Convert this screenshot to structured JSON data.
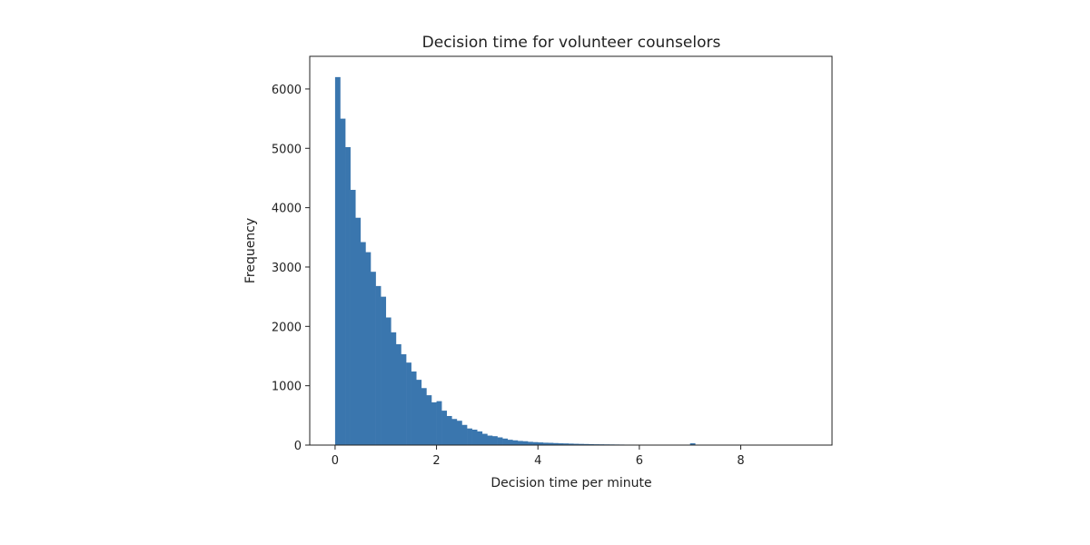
{
  "chart_data": {
    "type": "bar",
    "title": "Decision time for volunteer counselors",
    "xlabel": "Decision time per minute",
    "ylabel": "Frequency",
    "xlim": [
      -0.5,
      9.8
    ],
    "ylim": [
      0,
      6550
    ],
    "x_ticks": [
      0,
      2,
      4,
      6,
      8
    ],
    "y_ticks": [
      0,
      1000,
      2000,
      3000,
      4000,
      5000,
      6000
    ],
    "bin_width": 0.1,
    "bin_start": 0,
    "color": "#3a76ae",
    "grid": false,
    "values": [
      6200,
      5500,
      5020,
      4300,
      3830,
      3420,
      3250,
      2920,
      2680,
      2500,
      2150,
      1900,
      1700,
      1530,
      1390,
      1240,
      1100,
      960,
      840,
      720,
      740,
      580,
      490,
      440,
      410,
      340,
      280,
      260,
      230,
      190,
      160,
      150,
      130,
      110,
      90,
      80,
      70,
      65,
      55,
      50,
      45,
      40,
      38,
      34,
      30,
      28,
      25,
      22,
      20,
      18,
      16,
      14,
      13,
      12,
      11,
      10,
      9,
      8,
      8,
      7,
      6,
      6,
      5,
      5,
      4,
      4,
      4,
      3,
      3,
      3,
      30,
      3,
      2,
      2,
      2,
      2,
      2,
      2,
      1,
      1,
      1,
      1,
      1,
      1,
      1,
      1,
      1,
      1,
      1,
      1,
      1,
      1
    ]
  }
}
